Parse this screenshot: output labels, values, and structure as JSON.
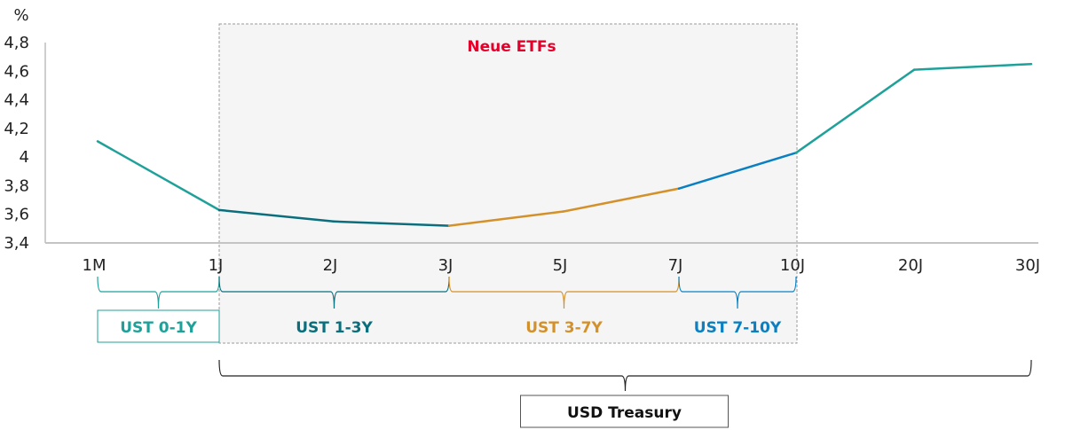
{
  "chart_data": {
    "type": "line",
    "title": "",
    "ylabel": "%",
    "xlabel": "",
    "ylim": [
      3.4,
      4.8
    ],
    "yticks": [
      "3,4",
      "3,6",
      "3,8",
      "4",
      "4,2",
      "4,4",
      "4,6",
      "4,8"
    ],
    "categories": [
      "1M",
      "1J",
      "2J",
      "3J",
      "5J",
      "7J",
      "10J",
      "20J",
      "30J"
    ],
    "values": [
      4.11,
      3.63,
      3.55,
      3.52,
      3.62,
      3.78,
      4.03,
      4.61,
      4.65
    ],
    "grid": false,
    "highlight_box": {
      "label": "Neue ETFs",
      "from": "1J",
      "to": "10J",
      "color": "#e4002b"
    },
    "segments": [
      {
        "label": "UST 0-1Y",
        "from": "1M",
        "to": "1J",
        "color": "#1fa19a",
        "boxed": true
      },
      {
        "label": "UST 1-3Y",
        "from": "1J",
        "to": "3J",
        "color": "#0a6e7d",
        "boxed": false
      },
      {
        "label": "UST 3-7Y",
        "from": "3J",
        "to": "7J",
        "color": "#d4912a",
        "boxed": false
      },
      {
        "label": "UST 7-10Y",
        "from": "7J",
        "to": "10J",
        "color": "#0a80c2",
        "boxed": false
      }
    ],
    "overall": {
      "label": "USD Treasury",
      "from": "1J",
      "to": "30J",
      "color": "#222222"
    },
    "line_color_default": "#1fa19a"
  }
}
